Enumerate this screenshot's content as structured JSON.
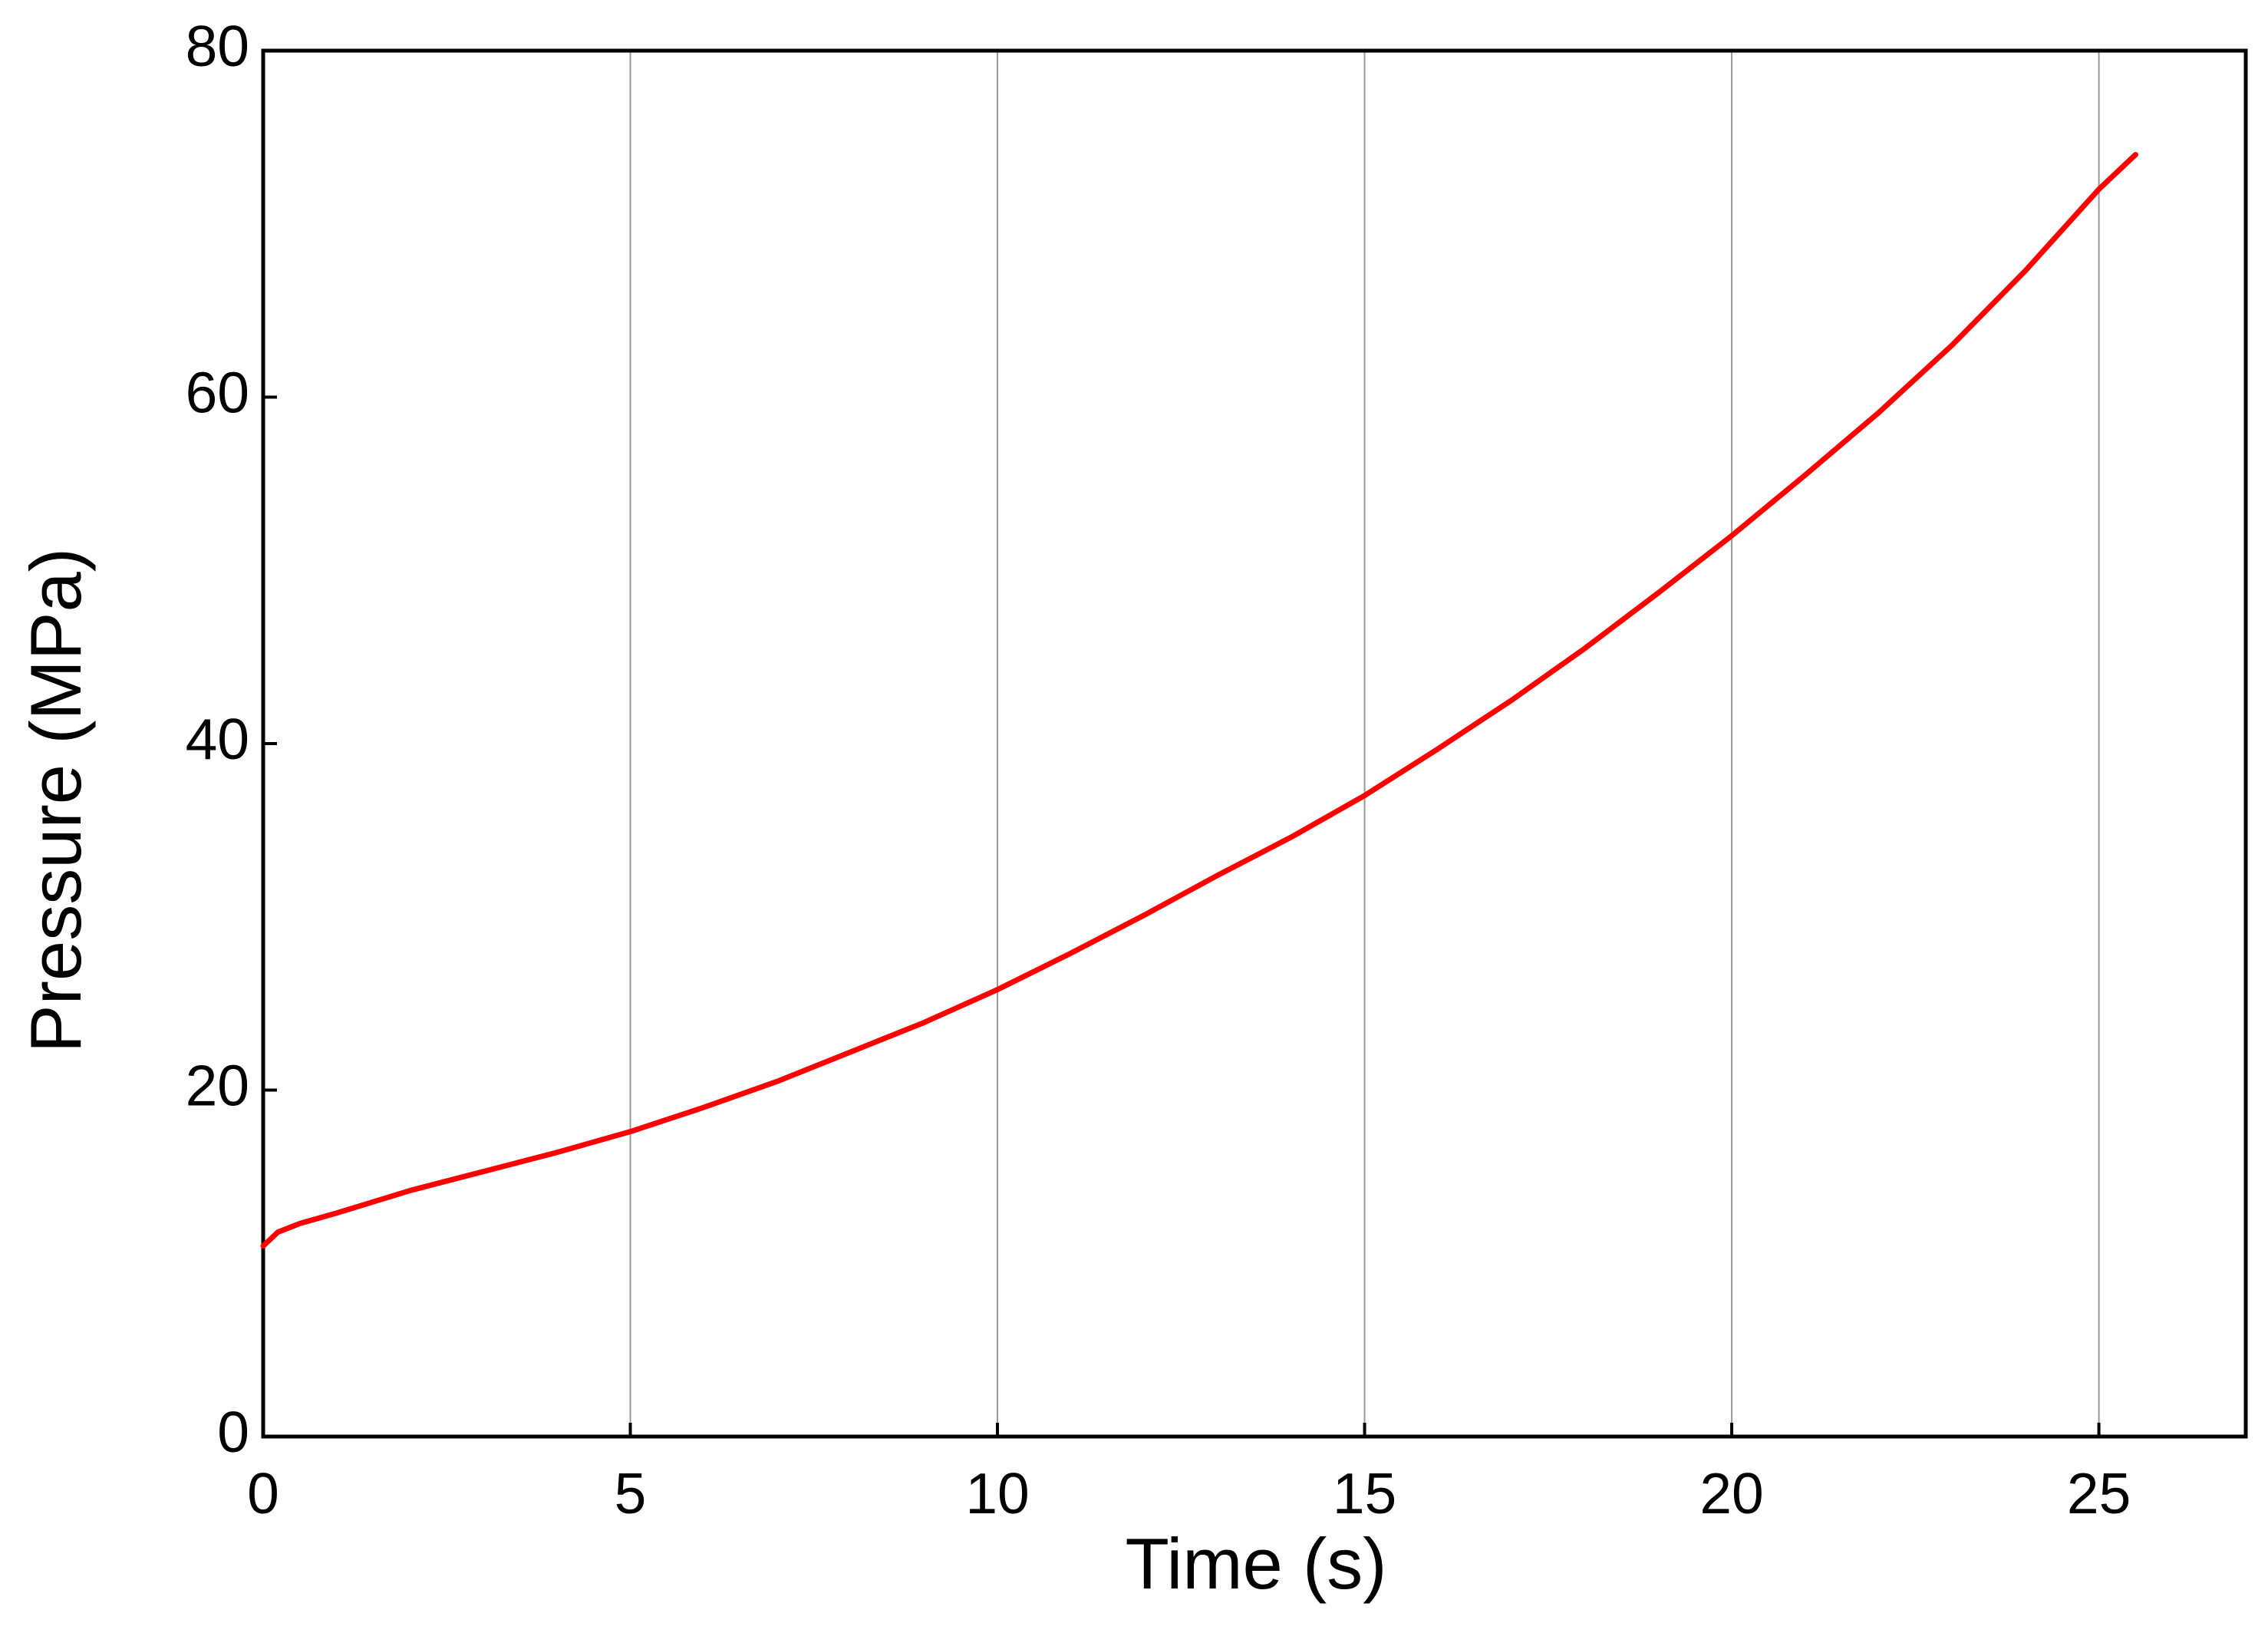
{
  "chart_data": {
    "type": "line",
    "x_label": "Time (s)",
    "y_label": "Pressure (MPa)",
    "x": [
      0,
      0.2,
      0.5,
      1,
      2,
      3,
      4,
      5,
      6,
      7,
      8,
      9,
      10,
      11,
      12,
      13,
      14,
      15,
      16,
      17,
      18,
      19,
      20,
      21,
      22,
      23,
      24,
      25,
      25.5
    ],
    "series": [
      {
        "name": "Pressure",
        "color": "#ff0000",
        "values": [
          11,
          11.8,
          12.3,
          12.9,
          14.2,
          15.3,
          16.4,
          17.6,
          19.0,
          20.5,
          22.2,
          23.9,
          25.8,
          27.9,
          30.1,
          32.4,
          34.6,
          37,
          39.7,
          42.5,
          45.5,
          48.7,
          52,
          55.5,
          59.1,
          63.0,
          67.3,
          72,
          74
        ]
      }
    ],
    "xlim": [
      0,
      27
    ],
    "xticks": [
      0,
      5,
      10,
      15,
      20,
      25
    ],
    "ylim": [
      0,
      80
    ],
    "yticks": [
      0,
      20,
      40,
      60,
      80
    ],
    "grid": "x"
  }
}
